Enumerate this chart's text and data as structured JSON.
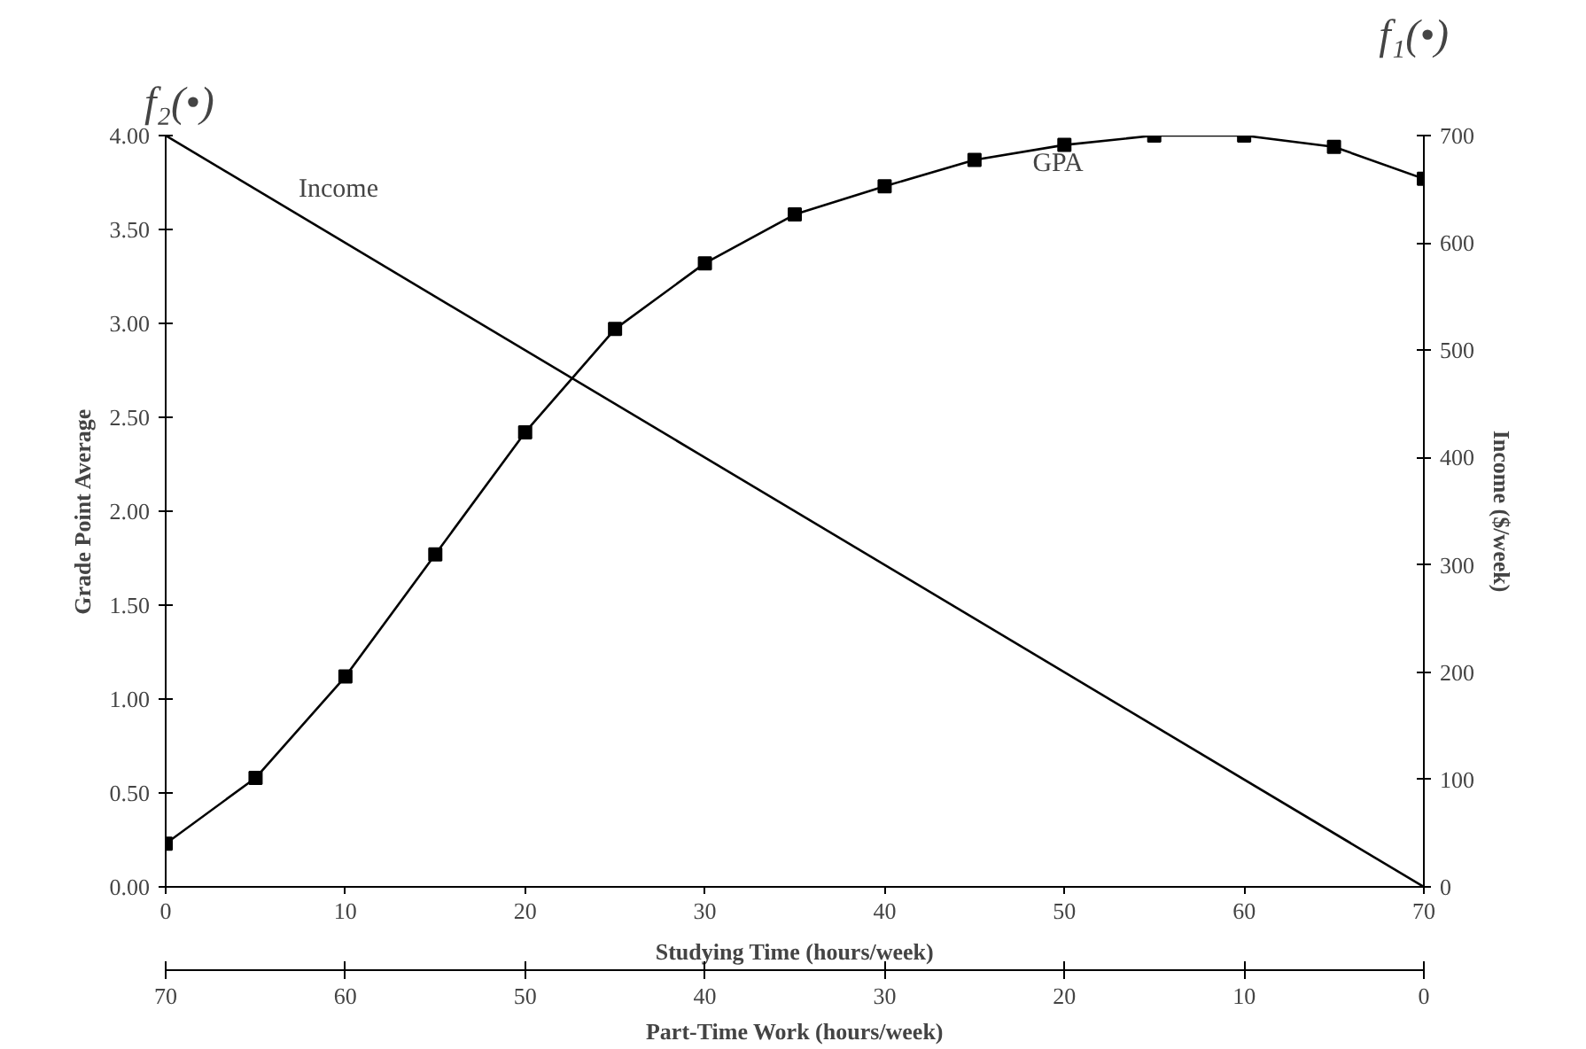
{
  "chart_data": {
    "type": "line",
    "xlabel": "Studying Time (hours/week)",
    "ylabel": "Grade Point Average",
    "y2label": "Income ($/week)",
    "x2label": "Part-Time Work (hours/week)",
    "xlim": [
      0,
      70
    ],
    "xticks": [
      0,
      10,
      20,
      30,
      40,
      50,
      60,
      70
    ],
    "x2lim": [
      70,
      0
    ],
    "x2ticks": [
      70,
      60,
      50,
      40,
      30,
      20,
      10,
      0
    ],
    "ylim": [
      0,
      4
    ],
    "yticks": [
      {
        "value": 0,
        "label": "0.00"
      },
      {
        "value": 0.5,
        "label": "0.50"
      },
      {
        "value": 1,
        "label": "1.00"
      },
      {
        "value": 1.5,
        "label": "1.50"
      },
      {
        "value": 2,
        "label": "2.00"
      },
      {
        "value": 2.5,
        "label": "2.50"
      },
      {
        "value": 3,
        "label": "3.00"
      },
      {
        "value": 3.5,
        "label": "3.50"
      },
      {
        "value": 4,
        "label": "4.00"
      }
    ],
    "y2lim": [
      0,
      700
    ],
    "y2ticks": [
      0,
      100,
      200,
      300,
      400,
      500,
      600,
      700
    ],
    "grid": false,
    "legend": false,
    "line_style": "solid",
    "annotations": [
      "f₂(•)",
      "f₁(•)"
    ],
    "series": [
      {
        "name": "GPA",
        "color": "#000000",
        "marker": "square",
        "x": [
          0,
          5,
          10,
          15,
          20,
          25,
          30,
          35,
          40,
          45,
          50,
          55,
          60,
          65,
          70
        ],
        "values": [
          0.23,
          0.58,
          1.12,
          1.77,
          2.42,
          2.97,
          3.32,
          3.58,
          3.73,
          3.87,
          3.95,
          4.0,
          4.0,
          3.94,
          3.77
        ]
      },
      {
        "name": "Income",
        "color": "#000000",
        "axis": "y2",
        "x": [
          0,
          70
        ],
        "values": [
          700,
          0
        ]
      }
    ]
  }
}
